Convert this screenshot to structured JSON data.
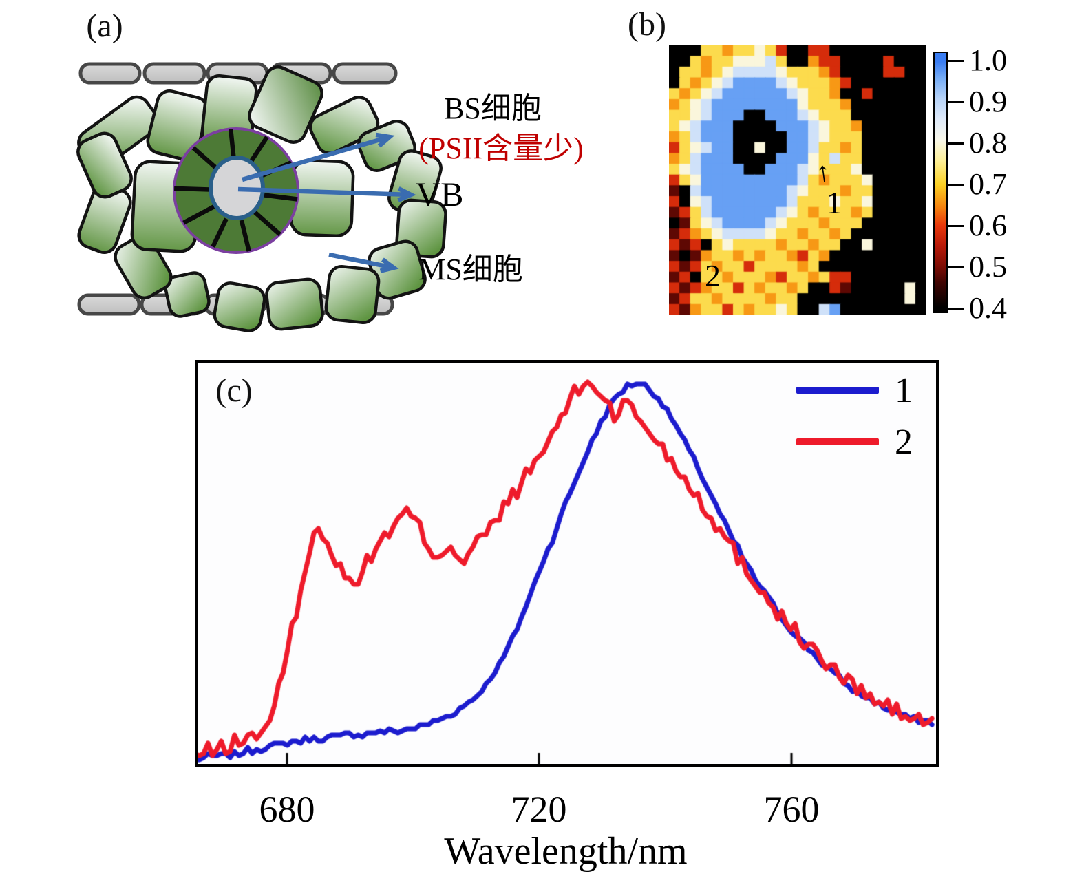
{
  "panel_a": {
    "label": "(a)",
    "bs_cell_label": "BS细胞",
    "psii_note": "(PSII含量少)",
    "vb_label": "VB",
    "ms_cell_label": "MS细胞",
    "colors": {
      "bs_ring_fill": "#4d7a36",
      "bs_ring_outline": "#7b3fa0",
      "vb_fill": "#d5d5d7",
      "vb_outline": "#2a5f8a",
      "arrow": "#3a6cb0",
      "psii_text": "#c00000",
      "epidermis_fill": "#cbcbcb",
      "epidermis_outline": "#474747",
      "ms_light": "#f2f7f3",
      "ms_green": "#5f9542",
      "cell_outline": "#131313"
    }
  },
  "panel_b": {
    "label": "(b)",
    "markers": [
      {
        "text": "1"
      },
      {
        "text": "2"
      }
    ],
    "colorbar": {
      "tick_labels": [
        "1.0",
        "0.9",
        "0.8",
        "0.7",
        "0.6",
        "0.5",
        "0.4"
      ],
      "value_range": [
        0.4,
        1.0
      ]
    }
  },
  "panel_c": {
    "label": "(c)",
    "xlabel": "Wavelength/nm",
    "xtick_labels": [
      "680",
      "720",
      "760"
    ],
    "legend": [
      {
        "label": "1"
      },
      {
        "label": "2"
      }
    ]
  },
  "chart_data": [
    {
      "type": "line",
      "title": "",
      "xlabel": "Wavelength/nm",
      "ylabel": "",
      "x_range": [
        665.4,
        782.9
      ],
      "xticks": [
        680,
        720,
        760
      ],
      "ylim": [
        0,
        1.05
      ],
      "grid": false,
      "legend_position": "top-right",
      "series": [
        {
          "name": "1",
          "color": "#1c1cce",
          "noise": 0.008,
          "points": [
            [
              665.5,
              0.005
            ],
            [
              668,
              0.01
            ],
            [
              671,
              0.015
            ],
            [
              674,
              0.025
            ],
            [
              677,
              0.035
            ],
            [
              680,
              0.045
            ],
            [
              683,
              0.055
            ],
            [
              686,
              0.06
            ],
            [
              689,
              0.065
            ],
            [
              692,
              0.07
            ],
            [
              695,
              0.075
            ],
            [
              698,
              0.08
            ],
            [
              701,
              0.09
            ],
            [
              704,
              0.105
            ],
            [
              707,
              0.13
            ],
            [
              710,
              0.17
            ],
            [
              712,
              0.21
            ],
            [
              714,
              0.26
            ],
            [
              716,
              0.33
            ],
            [
              718,
              0.41
            ],
            [
              720,
              0.5
            ],
            [
              722,
              0.58
            ],
            [
              724,
              0.67
            ],
            [
              726,
              0.75
            ],
            [
              728,
              0.83
            ],
            [
              730,
              0.9
            ],
            [
              732,
              0.955
            ],
            [
              734,
              0.99
            ],
            [
              735.5,
              1.0
            ],
            [
              737,
              0.99
            ],
            [
              739,
              0.955
            ],
            [
              741,
              0.905
            ],
            [
              743,
              0.845
            ],
            [
              745,
              0.78
            ],
            [
              747,
              0.71
            ],
            [
              749,
              0.64
            ],
            [
              751,
              0.575
            ],
            [
              753,
              0.515
            ],
            [
              755,
              0.46
            ],
            [
              757,
              0.41
            ],
            [
              759,
              0.365
            ],
            [
              761,
              0.325
            ],
            [
              763,
              0.29
            ],
            [
              765,
              0.255
            ],
            [
              767,
              0.225
            ],
            [
              769,
              0.198
            ],
            [
              771,
              0.175
            ],
            [
              773,
              0.155
            ],
            [
              775,
              0.138
            ],
            [
              777,
              0.124
            ],
            [
              779,
              0.112
            ],
            [
              781,
              0.103
            ],
            [
              783,
              0.098
            ]
          ]
        },
        {
          "name": "2",
          "color": "#ee1b2b",
          "noise": 0.022,
          "points": [
            [
              665.5,
              0.012
            ],
            [
              668,
              0.025
            ],
            [
              670,
              0.035
            ],
            [
              672,
              0.05
            ],
            [
              674,
              0.06
            ],
            [
              676,
              0.075
            ],
            [
              678,
              0.14
            ],
            [
              679,
              0.2
            ],
            [
              680,
              0.28
            ],
            [
              681,
              0.36
            ],
            [
              682,
              0.44
            ],
            [
              683,
              0.51
            ],
            [
              684,
              0.57
            ],
            [
              685,
              0.62
            ],
            [
              686,
              0.6
            ],
            [
              687,
              0.56
            ],
            [
              688,
              0.52
            ],
            [
              689,
              0.49
            ],
            [
              690,
              0.47
            ],
            [
              691,
              0.48
            ],
            [
              692,
              0.5
            ],
            [
              693,
              0.53
            ],
            [
              694,
              0.56
            ],
            [
              695,
              0.585
            ],
            [
              696,
              0.6
            ],
            [
              697,
              0.615
            ],
            [
              698,
              0.635
            ],
            [
              699,
              0.66
            ],
            [
              700,
              0.64
            ],
            [
              701,
              0.615
            ],
            [
              702,
              0.58
            ],
            [
              703,
              0.555
            ],
            [
              704,
              0.54
            ],
            [
              705,
              0.56
            ],
            [
              706,
              0.575
            ],
            [
              707,
              0.545
            ],
            [
              708,
              0.525
            ],
            [
              709,
              0.55
            ],
            [
              710,
              0.575
            ],
            [
              711,
              0.59
            ],
            [
              712,
              0.605
            ],
            [
              713,
              0.63
            ],
            [
              714,
              0.655
            ],
            [
              715,
              0.685
            ],
            [
              716,
              0.705
            ],
            [
              717,
              0.725
            ],
            [
              718,
              0.75
            ],
            [
              719,
              0.775
            ],
            [
              720,
              0.8
            ],
            [
              721,
              0.83
            ],
            [
              722,
              0.86
            ],
            [
              723,
              0.89
            ],
            [
              724,
              0.925
            ],
            [
              725,
              0.955
            ],
            [
              726,
              0.975
            ],
            [
              727,
              0.99
            ],
            [
              728,
              1.0
            ],
            [
              729,
              0.985
            ],
            [
              730,
              0.965
            ],
            [
              731,
              0.945
            ],
            [
              732,
              0.91
            ],
            [
              733,
              0.93
            ],
            [
              734,
              0.945
            ],
            [
              735,
              0.92
            ],
            [
              736,
              0.9
            ],
            [
              737,
              0.88
            ],
            [
              738,
              0.86
            ],
            [
              739,
              0.84
            ],
            [
              740,
              0.815
            ],
            [
              742,
              0.77
            ],
            [
              744,
              0.725
            ],
            [
              746,
              0.675
            ],
            [
              748,
              0.625
            ],
            [
              750,
              0.575
            ],
            [
              752,
              0.525
            ],
            [
              754,
              0.48
            ],
            [
              756,
              0.435
            ],
            [
              758,
              0.39
            ],
            [
              760,
              0.35
            ],
            [
              762,
              0.315
            ],
            [
              764,
              0.28
            ],
            [
              766,
              0.25
            ],
            [
              768,
              0.22
            ],
            [
              770,
              0.195
            ],
            [
              772,
              0.172
            ],
            [
              774,
              0.152
            ],
            [
              776,
              0.135
            ],
            [
              778,
              0.12
            ],
            [
              780,
              0.108
            ],
            [
              782,
              0.1
            ],
            [
              783,
              0.098
            ]
          ]
        }
      ]
    },
    {
      "type": "heatmap",
      "value_range": [
        0.4,
        1.0
      ],
      "colorbar_ticks": [
        1.0,
        0.9,
        0.8,
        0.7,
        0.6,
        0.5,
        0.4
      ],
      "annotations": [
        {
          "text": "1",
          "note": "blue/yellow boundary, center-right"
        },
        {
          "text": "2",
          "note": "orange-red region, lower-left"
        }
      ],
      "colormap_stops": [
        [
          0.4,
          "#000000"
        ],
        [
          0.46,
          "#400402"
        ],
        [
          0.5,
          "#7d0d05"
        ],
        [
          0.55,
          "#b81a09"
        ],
        [
          0.6,
          "#e8380c"
        ],
        [
          0.645,
          "#f5830f"
        ],
        [
          0.7,
          "#fbd125"
        ],
        [
          0.76,
          "#fdf09c"
        ],
        [
          0.81,
          "#f9f8ec"
        ],
        [
          0.86,
          "#dfeafa"
        ],
        [
          0.91,
          "#b7d3f8"
        ],
        [
          0.96,
          "#76acf5"
        ],
        [
          1.0,
          "#3a7df2"
        ]
      ],
      "palette_legend": {
        "K": 0.4,
        "D": 0.48,
        "R": 0.58,
        "O": 0.66,
        "Y": 0.72,
        "W": 0.8,
        "L": 0.88,
        "S": 0.93,
        "B": 0.97
      },
      "grid_rows": [
        "KKKYYOYYWYRKKRRKKKKKKKKK",
        "KKYOYYWWWLYKKORRKKKKRKKK",
        "KYYOYWLLLLWYYYORKKKKRRKK",
        "KYOYWLBBBBLWYYYORKKKKKKK",
        "YOYWLBBBBBBLWYYOKKRKKKKK",
        "OYWLBBBBBBBBWYYYOKKKKKKK",
        "YYWLBBBKKBBBLWYYYKKKKKKK",
        "YWLBBBKKKKBBBLWYYOKKKKKK",
        "OYLBBBKKKKKBBLWYYYKKKKKK",
        "RYWLBBKKWKKBBLYYOYKKKKKK",
        "OYLBBBKKKKBBBWYLYYKKKKKK",
        "YWLBBBBKKBBBLWYYYWKKKKKK",
        "RYWBBBBBBBBBLYOYYYWKKKKK",
        "DKLBBBBBBBBLWYYYOYYKKKKK",
        "RKWLBBBBBBBLYYYWYYWKKKKK",
        "DRYLBBBBBBLWYOYYYOYKKKKK",
        "KDYWLBBBBLWYYYOYYYKKKKKK",
        "DROYWLLLLWYYOYYOYKKKKKKK",
        "RDRKYWYYYYOYYOYYKKWKKKKK",
        "DKDOYYOYOYYORYOKKKKKKKKK",
        "RDRYOYYRYYYYOYKKKKKKKKKK",
        "DRKYYOYYYORYYOYRRKKKKKKK",
        "RDROYYRYOYYOYKKRDKKKKKWK",
        "DRYYOYYYYOYYKKKKKKKKKKWK",
        "RDOYYRYOYYWYKKLBKKKKKKKK"
      ]
    }
  ]
}
